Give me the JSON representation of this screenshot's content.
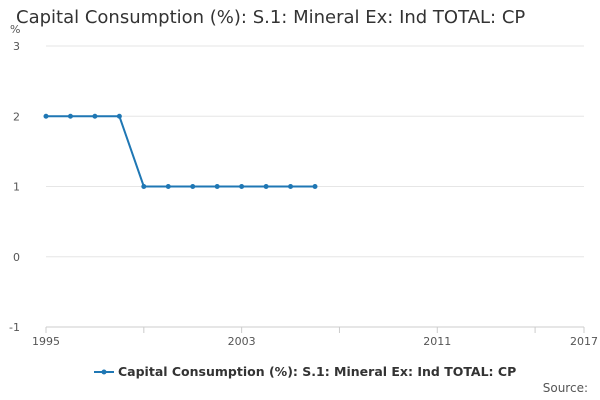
{
  "page": {
    "source_label": "Source:"
  },
  "colors": {
    "series": "#1f77b4",
    "grid": "#e6e6e6",
    "tick_text": "#555555"
  },
  "chart_data": {
    "type": "line",
    "title": "Capital Consumption (%): S.1: Mineral Ex: Ind TOTAL: CP",
    "ylabel": "%",
    "xlabel": "",
    "xlim": [
      1995,
      2017
    ],
    "ylim": [
      -1,
      3
    ],
    "x_ticks": [
      1995,
      2003,
      2011,
      2017
    ],
    "x_minor_ticks": [
      1995,
      1999,
      2003,
      2007,
      2011,
      2015,
      2017
    ],
    "y_ticks": [
      -1,
      0,
      1,
      2,
      3
    ],
    "grid": true,
    "legend_position": "bottom",
    "series": [
      {
        "name": "Capital Consumption (%): S.1: Mineral Ex: Ind TOTAL: CP",
        "x": [
          1995,
          1996,
          1997,
          1998,
          1999,
          2000,
          2001,
          2002,
          2003,
          2004,
          2005,
          2006
        ],
        "values": [
          2,
          2,
          2,
          2,
          1,
          1,
          1,
          1,
          1,
          1,
          1,
          1
        ]
      }
    ]
  }
}
